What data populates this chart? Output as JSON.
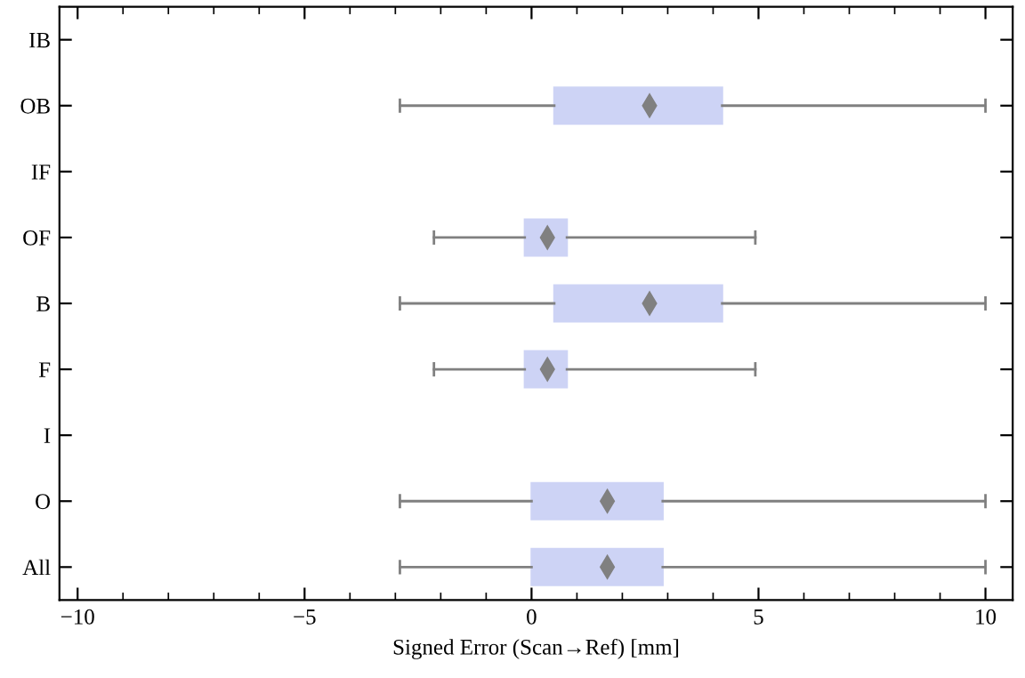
{
  "chart_data": {
    "type": "box",
    "orientation": "horizontal",
    "xlabel": "Signed Error (Scan→Ref) [mm]",
    "categories": [
      "IB",
      "OB",
      "IF",
      "OF",
      "B",
      "F",
      "I",
      "O",
      "All"
    ],
    "boxes": [
      null,
      {
        "low": -2.9,
        "q1": 0.5,
        "median": 2.6,
        "q3": 4.2,
        "high": 10
      },
      null,
      {
        "low": -2.15,
        "q1": -0.15,
        "median": 0.35,
        "q3": 0.78,
        "high": 4.93
      },
      {
        "low": -2.9,
        "q1": 0.5,
        "median": 2.6,
        "q3": 4.2,
        "high": 10
      },
      {
        "low": -2.15,
        "q1": -0.15,
        "median": 0.35,
        "q3": 0.78,
        "high": 4.93
      },
      null,
      {
        "low": -2.9,
        "q1": 0,
        "median": 1.67,
        "q3": 2.89,
        "high": 10
      },
      {
        "low": -2.9,
        "q1": 0,
        "median": 1.67,
        "q3": 2.89,
        "high": 10
      }
    ],
    "color": "#cdd3f5",
    "marker": "diamond",
    "xlim": [
      -10.4,
      10.6
    ],
    "xticks": [
      {
        "value": -10,
        "label": "−10"
      },
      {
        "value": -5,
        "label": "−5"
      },
      0,
      5,
      10
    ],
    "grid": false
  }
}
